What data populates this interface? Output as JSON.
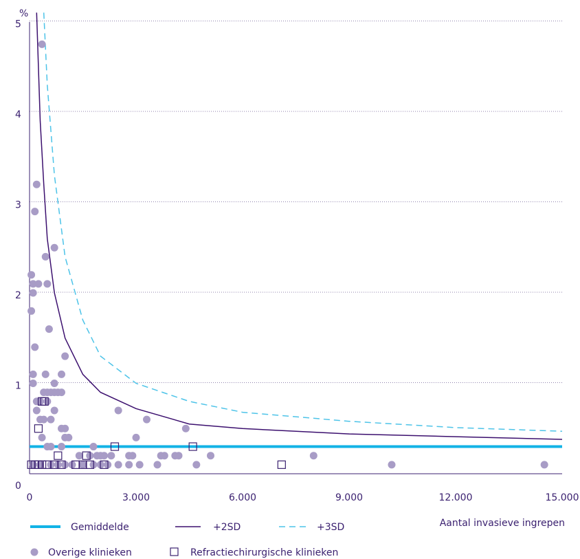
{
  "chart_data": {
    "type": "scatter",
    "ylabel": "%",
    "xlabel": "Aantal invasieve ingrepen",
    "xlim": [
      0,
      15000
    ],
    "ylim": [
      0,
      5.2
    ],
    "x_ticks": [
      0,
      3000,
      6000,
      9000,
      12000,
      15000
    ],
    "x_tick_labels": [
      "0",
      "3.000",
      "6.000",
      "9.000",
      "12.000",
      "15.000"
    ],
    "y_ticks": [
      0,
      1,
      2,
      3,
      4,
      5
    ],
    "y_tick_labels": [
      "0",
      "1",
      "2",
      "3",
      "4",
      "5"
    ],
    "grid": "horizontal dotted",
    "legend": {
      "mean": "Gemiddelde",
      "sd2": "+2SD",
      "sd3": "+3SD",
      "other": "Overige klinieken",
      "refractive": "Refractiechirurgische klinieken"
    },
    "mean_value": 0.3,
    "sd2_curve": [
      [
        200,
        5.1
      ],
      [
        300,
        3.9
      ],
      [
        400,
        3.2
      ],
      [
        500,
        2.6
      ],
      [
        700,
        2.0
      ],
      [
        1000,
        1.5
      ],
      [
        1500,
        1.1
      ],
      [
        2000,
        0.9
      ],
      [
        3000,
        0.72
      ],
      [
        4500,
        0.55
      ],
      [
        6000,
        0.5
      ],
      [
        9000,
        0.44
      ],
      [
        12000,
        0.41
      ],
      [
        15000,
        0.38
      ]
    ],
    "sd3_curve": [
      [
        400,
        5.1
      ],
      [
        500,
        4.3
      ],
      [
        700,
        3.3
      ],
      [
        1000,
        2.4
      ],
      [
        1500,
        1.7
      ],
      [
        2000,
        1.3
      ],
      [
        3000,
        1.0
      ],
      [
        4500,
        0.8
      ],
      [
        6000,
        0.68
      ],
      [
        9000,
        0.58
      ],
      [
        12000,
        0.51
      ],
      [
        15000,
        0.47
      ]
    ],
    "series": [
      {
        "name": "Overige klinieken",
        "points": [
          [
            350,
            4.75
          ],
          [
            200,
            3.2
          ],
          [
            150,
            2.9
          ],
          [
            700,
            2.5
          ],
          [
            450,
            2.4
          ],
          [
            50,
            2.2
          ],
          [
            100,
            2.1
          ],
          [
            250,
            2.1
          ],
          [
            500,
            2.1
          ],
          [
            50,
            1.8
          ],
          [
            100,
            2.0
          ],
          [
            550,
            1.6
          ],
          [
            150,
            1.4
          ],
          [
            1000,
            1.3
          ],
          [
            100,
            1.1
          ],
          [
            450,
            1.1
          ],
          [
            900,
            1.1
          ],
          [
            100,
            1.0
          ],
          [
            700,
            1.0
          ],
          [
            400,
            0.9
          ],
          [
            500,
            0.9
          ],
          [
            600,
            0.9
          ],
          [
            700,
            0.9
          ],
          [
            800,
            0.9
          ],
          [
            900,
            0.9
          ],
          [
            200,
            0.8
          ],
          [
            300,
            0.8
          ],
          [
            500,
            0.8
          ],
          [
            200,
            0.7
          ],
          [
            700,
            0.7
          ],
          [
            2500,
            0.7
          ],
          [
            300,
            0.6
          ],
          [
            400,
            0.6
          ],
          [
            600,
            0.6
          ],
          [
            3300,
            0.6
          ],
          [
            900,
            0.5
          ],
          [
            1000,
            0.5
          ],
          [
            4400,
            0.5
          ],
          [
            350,
            0.4
          ],
          [
            1000,
            0.4
          ],
          [
            1100,
            0.4
          ],
          [
            3000,
            0.4
          ],
          [
            500,
            0.3
          ],
          [
            600,
            0.3
          ],
          [
            900,
            0.3
          ],
          [
            1800,
            0.3
          ],
          [
            1400,
            0.2
          ],
          [
            1700,
            0.2
          ],
          [
            1900,
            0.2
          ],
          [
            2000,
            0.2
          ],
          [
            2100,
            0.2
          ],
          [
            2300,
            0.2
          ],
          [
            2800,
            0.2
          ],
          [
            2900,
            0.2
          ],
          [
            3700,
            0.2
          ],
          [
            3800,
            0.2
          ],
          [
            4100,
            0.2
          ],
          [
            4200,
            0.2
          ],
          [
            5100,
            0.2
          ],
          [
            8000,
            0.2
          ],
          [
            100,
            0.1
          ],
          [
            300,
            0.1
          ],
          [
            600,
            0.1
          ],
          [
            800,
            0.1
          ],
          [
            1000,
            0.1
          ],
          [
            1200,
            0.1
          ],
          [
            1500,
            0.1
          ],
          [
            1800,
            0.1
          ],
          [
            2000,
            0.1
          ],
          [
            2200,
            0.1
          ],
          [
            2500,
            0.1
          ],
          [
            2800,
            0.1
          ],
          [
            3100,
            0.1
          ],
          [
            3600,
            0.1
          ],
          [
            4700,
            0.1
          ],
          [
            10200,
            0.1
          ],
          [
            14500,
            0.1
          ]
        ]
      },
      {
        "name": "Refractiechirurgische klinieken",
        "points": [
          [
            350,
            0.8
          ],
          [
            420,
            0.8
          ],
          [
            250,
            0.5
          ],
          [
            800,
            0.2
          ],
          [
            1600,
            0.2
          ],
          [
            2400,
            0.3
          ],
          [
            4600,
            0.3
          ],
          [
            50,
            0.1
          ],
          [
            150,
            0.1
          ],
          [
            250,
            0.1
          ],
          [
            350,
            0.1
          ],
          [
            500,
            0.1
          ],
          [
            700,
            0.1
          ],
          [
            900,
            0.1
          ],
          [
            1300,
            0.1
          ],
          [
            1500,
            0.1
          ],
          [
            1700,
            0.1
          ],
          [
            2100,
            0.1
          ],
          [
            7100,
            0.1
          ]
        ]
      }
    ]
  },
  "colors": {
    "mean": "#12b3e6",
    "sd2": "#3b0f6e",
    "sd3": "#4cc3e8",
    "other": "#a89cc6",
    "refractive": "#3b2170",
    "text": "#3b2170",
    "grid": "#6b5a93"
  }
}
